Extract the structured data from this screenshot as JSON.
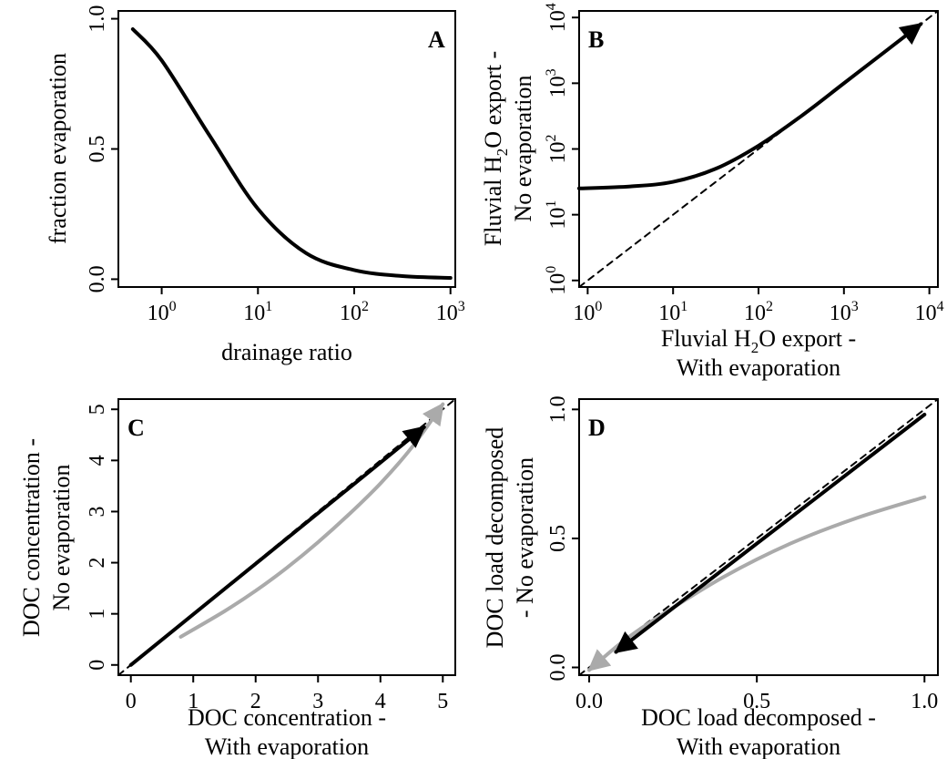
{
  "chart_data": [
    {
      "panel": "A",
      "type": "line",
      "xlabel": "drainage ratio",
      "ylabel": "fraction evaporation",
      "xscale": "log",
      "xlim_log10": [
        -0.45,
        3.05
      ],
      "ylim": [
        -0.03,
        1.03
      ],
      "xticks": [
        {
          "v": 0,
          "exp": "0"
        },
        {
          "v": 1,
          "exp": "1"
        },
        {
          "v": 2,
          "exp": "2"
        },
        {
          "v": 3,
          "exp": "3"
        }
      ],
      "yticks": [
        {
          "v": 0,
          "label": "0.0"
        },
        {
          "v": 0.5,
          "label": "0.5"
        },
        {
          "v": 1,
          "label": "1.0"
        }
      ],
      "series": [
        {
          "color": "#000000",
          "x_log10": [
            -0.3,
            0,
            0.5,
            1,
            1.5,
            2,
            2.5,
            3
          ],
          "y": [
            0.96,
            0.84,
            0.55,
            0.27,
            0.1,
            0.035,
            0.012,
            0.005
          ]
        }
      ]
    },
    {
      "panel": "B",
      "type": "line",
      "xlabel_main": "Fluvial H",
      "xlabel_sub": "2",
      "xlabel_rest": "O export -",
      "xlabel_line2": "With evaporation",
      "ylabel_main": "Fluvial H",
      "ylabel_sub": "2",
      "ylabel_rest": "O export -",
      "ylabel_line2": "No evaporation",
      "xscale": "log",
      "yscale": "log",
      "xlim_log10": [
        -0.1,
        4.1
      ],
      "ylim_log10": [
        -0.1,
        4.1
      ],
      "xticks": [
        {
          "v": 0,
          "exp": "0"
        },
        {
          "v": 1,
          "exp": "1"
        },
        {
          "v": 2,
          "exp": "2"
        },
        {
          "v": 3,
          "exp": "3"
        },
        {
          "v": 4,
          "exp": "4"
        }
      ],
      "yticks": [
        {
          "v": 0,
          "exp": "0"
        },
        {
          "v": 1,
          "exp": "1"
        },
        {
          "v": 2,
          "exp": "2"
        },
        {
          "v": 3,
          "exp": "3"
        },
        {
          "v": 4,
          "exp": "4"
        }
      ],
      "series": [
        {
          "color": "#000000",
          "x_log10": [
            -0.1,
            0.5,
            1,
            1.5,
            2,
            2.5,
            3,
            3.5,
            3.9
          ],
          "y_log10": [
            1.4,
            1.43,
            1.5,
            1.7,
            2.05,
            2.5,
            3.0,
            3.5,
            3.9
          ],
          "arrow": true
        },
        {
          "color": "#000000",
          "dashed": true,
          "x_log10": [
            -0.1,
            4.1
          ],
          "y_log10": [
            -0.1,
            4.1
          ]
        }
      ]
    },
    {
      "panel": "C",
      "type": "line",
      "xlabel": "DOC concentration -",
      "xlabel_line2": "With evaporation",
      "ylabel": "DOC concentration -",
      "ylabel_line2": "No evaporation",
      "xlim": [
        -0.2,
        5.2
      ],
      "ylim": [
        -0.2,
        5.2
      ],
      "xticks": [
        {
          "v": 0,
          "label": "0"
        },
        {
          "v": 1,
          "label": "1"
        },
        {
          "v": 2,
          "label": "2"
        },
        {
          "v": 3,
          "label": "3"
        },
        {
          "v": 4,
          "label": "4"
        },
        {
          "v": 5,
          "label": "5"
        }
      ],
      "yticks": [
        {
          "v": 0,
          "label": "0"
        },
        {
          "v": 1,
          "label": "1"
        },
        {
          "v": 2,
          "label": "2"
        },
        {
          "v": 3,
          "label": "3"
        },
        {
          "v": 4,
          "label": "4"
        },
        {
          "v": 5,
          "label": "5"
        }
      ],
      "series": [
        {
          "color": "#000000",
          "dashed": true,
          "x": [
            -0.2,
            5.2
          ],
          "y": [
            -0.2,
            5.2
          ]
        },
        {
          "color": "#aaaaaa",
          "x": [
            0.8,
            1.5,
            2,
            2.5,
            3,
            3.5,
            4,
            4.5,
            5.0
          ],
          "y": [
            0.55,
            1.05,
            1.45,
            1.9,
            2.4,
            2.95,
            3.55,
            4.25,
            5.1
          ],
          "arrow": true
        },
        {
          "color": "#000000",
          "x": [
            0,
            4.7
          ],
          "y": [
            0,
            4.65
          ],
          "arrow": true
        }
      ]
    },
    {
      "panel": "D",
      "type": "line",
      "xlabel": "DOC load decomposed -",
      "xlabel_line2": "With evaporation",
      "ylabel": "DOC load decomposed",
      "ylabel_line2": "- No evaporation",
      "xlim": [
        -0.03,
        1.04
      ],
      "ylim": [
        -0.03,
        1.04
      ],
      "xticks": [
        {
          "v": 0,
          "label": "0.0"
        },
        {
          "v": 0.5,
          "label": "0.5"
        },
        {
          "v": 1,
          "label": "1.0"
        }
      ],
      "yticks": [
        {
          "v": 0,
          "label": "0.0"
        },
        {
          "v": 0.5,
          "label": "0.5"
        },
        {
          "v": 1,
          "label": "1.0"
        }
      ],
      "series": [
        {
          "color": "#000000",
          "dashed": true,
          "x": [
            -0.03,
            1.04
          ],
          "y": [
            -0.03,
            1.04
          ]
        },
        {
          "color": "#aaaaaa",
          "x": [
            1.0,
            0.8,
            0.6,
            0.4,
            0.2,
            0.1,
            0.0
          ],
          "y": [
            0.66,
            0.58,
            0.48,
            0.35,
            0.19,
            0.1,
            -0.01
          ],
          "arrow": true
        },
        {
          "color": "#000000",
          "x": [
            1.0,
            0.08
          ],
          "y": [
            0.98,
            0.06
          ],
          "arrow": true
        }
      ]
    }
  ]
}
